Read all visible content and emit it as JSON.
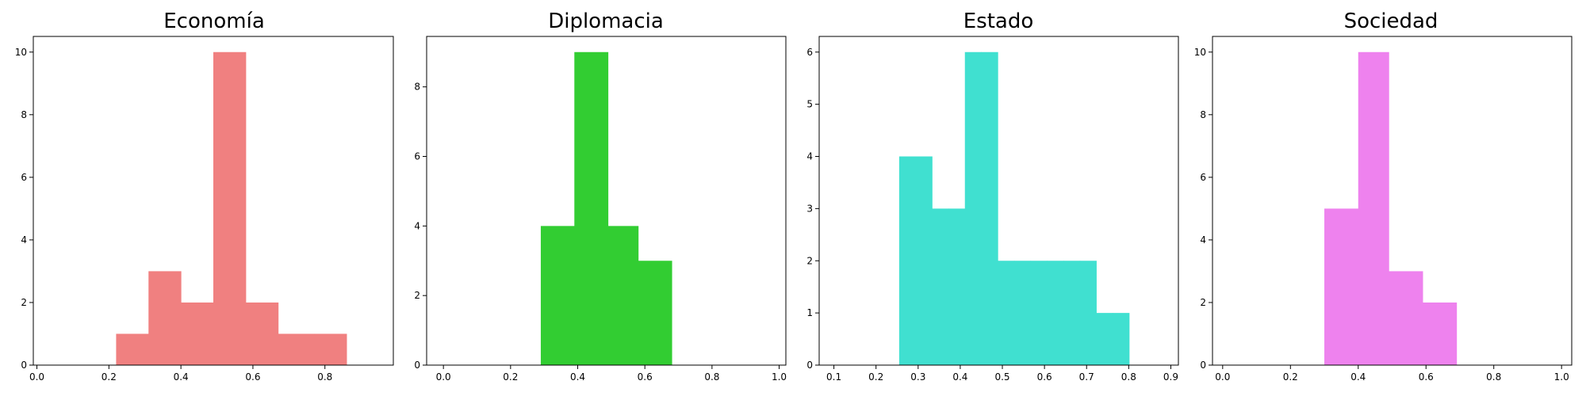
{
  "chart_data": [
    {
      "type": "bar",
      "title": "Economía",
      "color": "#f08080",
      "xlim": [
        -0.01,
        0.99
      ],
      "ylim": [
        0,
        10.5
      ],
      "xticks": [
        "0.0",
        "0.2",
        "0.4",
        "0.6",
        "0.8"
      ],
      "yticks": [
        "0",
        "2",
        "4",
        "6",
        "8",
        "10"
      ],
      "bins": [
        {
          "x0": 0.22,
          "x1": 0.31,
          "count": 1
        },
        {
          "x0": 0.31,
          "x1": 0.4,
          "count": 3
        },
        {
          "x0": 0.4,
          "x1": 0.49,
          "count": 2
        },
        {
          "x0": 0.49,
          "x1": 0.58,
          "count": 10
        },
        {
          "x0": 0.58,
          "x1": 0.67,
          "count": 2
        },
        {
          "x0": 0.67,
          "x1": 0.77,
          "count": 1
        },
        {
          "x0": 0.77,
          "x1": 0.86,
          "count": 1
        }
      ]
    },
    {
      "type": "bar",
      "title": "Diplomacia",
      "color": "#32cd32",
      "xlim": [
        -0.05,
        1.02
      ],
      "ylim": [
        0,
        9.45
      ],
      "xticks": [
        "0.0",
        "0.2",
        "0.4",
        "0.6",
        "0.8",
        "1.0"
      ],
      "yticks": [
        "0",
        "2",
        "4",
        "6",
        "8"
      ],
      "bins": [
        {
          "x0": 0.29,
          "x1": 0.39,
          "count": 4
        },
        {
          "x0": 0.39,
          "x1": 0.49,
          "count": 9
        },
        {
          "x0": 0.49,
          "x1": 0.58,
          "count": 4
        },
        {
          "x0": 0.58,
          "x1": 0.68,
          "count": 3
        }
      ]
    },
    {
      "type": "bar",
      "title": "Estado",
      "color": "#40e0d0",
      "xlim": [
        0.065,
        0.918
      ],
      "ylim": [
        0,
        6.3
      ],
      "xticks": [
        "0.1",
        "0.2",
        "0.3",
        "0.4",
        "0.5",
        "0.6",
        "0.7",
        "0.8",
        "0.9"
      ],
      "yticks": [
        "0",
        "1",
        "2",
        "3",
        "4",
        "5",
        "6"
      ],
      "bins": [
        {
          "x0": 0.255,
          "x1": 0.294,
          "count": 4
        },
        {
          "x0": 0.294,
          "x1": 0.333,
          "count": 4
        },
        {
          "x0": 0.333,
          "x1": 0.372,
          "count": 3
        },
        {
          "x0": 0.372,
          "x1": 0.411,
          "count": 3
        },
        {
          "x0": 0.411,
          "x1": 0.45,
          "count": 6
        },
        {
          "x0": 0.45,
          "x1": 0.489,
          "count": 6
        },
        {
          "x0": 0.489,
          "x1": 0.528,
          "count": 2
        },
        {
          "x0": 0.528,
          "x1": 0.567,
          "count": 2
        },
        {
          "x0": 0.567,
          "x1": 0.606,
          "count": 2
        },
        {
          "x0": 0.606,
          "x1": 0.645,
          "count": 2
        },
        {
          "x0": 0.645,
          "x1": 0.684,
          "count": 2
        },
        {
          "x0": 0.684,
          "x1": 0.723,
          "count": 2
        },
        {
          "x0": 0.723,
          "x1": 0.762,
          "count": 1
        },
        {
          "x0": 0.762,
          "x1": 0.801,
          "count": 1
        }
      ]
    },
    {
      "type": "bar",
      "title": "Sociedad",
      "color": "#ee82ee",
      "xlim": [
        -0.03,
        1.03
      ],
      "ylim": [
        0,
        10.5
      ],
      "xticks": [
        "0.0",
        "0.2",
        "0.4",
        "0.6",
        "0.8",
        "1.0"
      ],
      "yticks": [
        "0",
        "2",
        "4",
        "6",
        "8",
        "10"
      ],
      "bins": [
        {
          "x0": 0.3,
          "x1": 0.4,
          "count": 5
        },
        {
          "x0": 0.4,
          "x1": 0.49,
          "count": 10
        },
        {
          "x0": 0.49,
          "x1": 0.59,
          "count": 3
        },
        {
          "x0": 0.59,
          "x1": 0.69,
          "count": 2
        }
      ]
    }
  ]
}
